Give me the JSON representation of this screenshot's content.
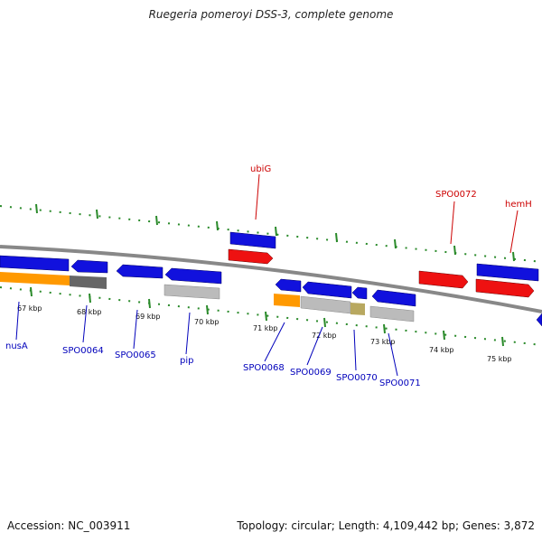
{
  "title": "Ruegeria pomeroyi DSS-3, complete genome",
  "footer": {
    "accession": "Accession: NC_003911",
    "stats": "Topology: circular; Length: 4,109,442 bp; Genes: 3,872"
  },
  "colors": {
    "forward_gene": "#ee1111",
    "reverse_gene": "#1111dd",
    "backbone": "#888888",
    "tick": "#2a8a2a",
    "orange_track": "#ff9900",
    "gray_track": "#bbbbbb",
    "dark_gray_track": "#666666",
    "olive_track": "#b8a860"
  },
  "kbp_labels": [
    "67 kbp",
    "68 kbp",
    "69 kbp",
    "70 kbp",
    "71 kbp",
    "72 kbp",
    "73 kbp",
    "74 kbp",
    "75 kbp"
  ],
  "forward_genes": [
    "ubiG",
    "SPO0072",
    "hemH"
  ],
  "reverse_genes": [
    "nusA",
    "SPO0064",
    "SPO0065",
    "pip",
    "SPO0068",
    "SPO0069",
    "SPO0070",
    "SPO0071"
  ]
}
